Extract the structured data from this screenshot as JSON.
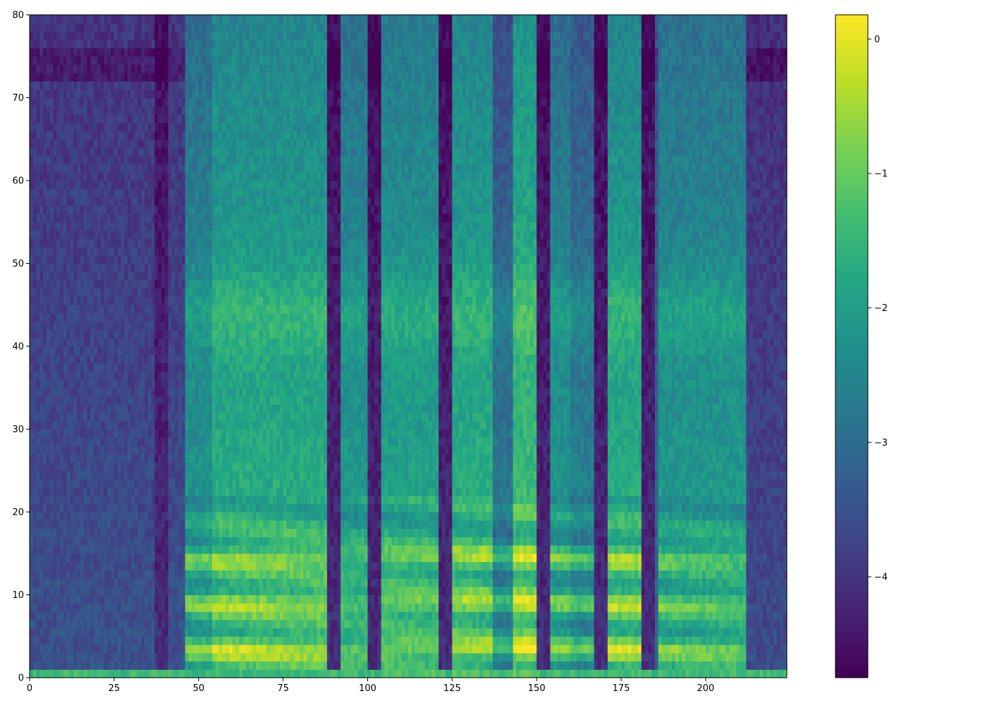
{
  "chart_data": {
    "type": "heatmap",
    "title": "",
    "xlabel": "",
    "ylabel": "",
    "xlim": [
      0,
      224
    ],
    "ylim": [
      0,
      80
    ],
    "x_ticks": [
      0,
      25,
      50,
      75,
      100,
      125,
      150,
      175,
      200
    ],
    "x_tick_labels": [
      "0",
      "25",
      "50",
      "75",
      "100",
      "125",
      "150",
      "175",
      "200"
    ],
    "y_ticks": [
      0,
      10,
      20,
      30,
      40,
      50,
      60,
      70,
      80
    ],
    "y_tick_labels": [
      "0",
      "10",
      "20",
      "30",
      "40",
      "50",
      "60",
      "70",
      "80"
    ],
    "n_frames": 224,
    "n_bins": 80,
    "colormap": "viridis",
    "colorbar": {
      "vmin": -4.75,
      "vmax": 0.18,
      "ticks": [
        0,
        -1,
        -2,
        -3,
        -4
      ],
      "tick_labels": [
        "0",
        "−1",
        "−2",
        "−3",
        "−4"
      ],
      "placement": "right"
    },
    "grid": false,
    "segments": [
      {
        "x0": 0,
        "x1": 46,
        "level": -3.5
      },
      {
        "x0": 46,
        "x1": 54,
        "level": -1.9
      },
      {
        "x0": 54,
        "x1": 88,
        "level": -1.4
      },
      {
        "x0": 88,
        "x1": 92,
        "level": -3.4
      },
      {
        "x0": 92,
        "x1": 101,
        "level": -1.8
      },
      {
        "x0": 101,
        "x1": 104,
        "level": -4.0
      },
      {
        "x0": 104,
        "x1": 121,
        "level": -1.6
      },
      {
        "x0": 121,
        "x1": 125,
        "level": -4.0
      },
      {
        "x0": 125,
        "x1": 137,
        "level": -1.4
      },
      {
        "x0": 137,
        "x1": 143,
        "level": -2.5
      },
      {
        "x0": 143,
        "x1": 150,
        "level": -1.1
      },
      {
        "x0": 150,
        "x1": 154,
        "level": -3.9
      },
      {
        "x0": 154,
        "x1": 160,
        "level": -1.9
      },
      {
        "x0": 160,
        "x1": 171,
        "level": -2.3
      },
      {
        "x0": 171,
        "x1": 182,
        "level": -1.4
      },
      {
        "x0": 182,
        "x1": 186,
        "level": -3.0
      },
      {
        "x0": 186,
        "x1": 212,
        "level": -1.8
      },
      {
        "x0": 212,
        "x1": 224,
        "level": -3.6
      }
    ],
    "dark_stripes": [
      39,
      90,
      102,
      123,
      152,
      169,
      183
    ],
    "harmonic_bands": [
      3.5,
      9,
      14.5
    ],
    "low_floor": {
      "y1": 1,
      "level": -1.4
    }
  }
}
